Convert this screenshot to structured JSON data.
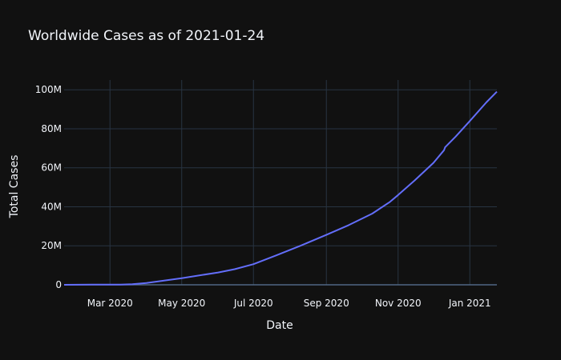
{
  "chart_data": {
    "type": "line",
    "title": "Worldwide Cases as of 2021-01-24",
    "xlabel": "Date",
    "ylabel": "Total Cases",
    "x_range": [
      "2020-01-22",
      "2021-01-24"
    ],
    "ylim": [
      0,
      105000000
    ],
    "x_ticks": [
      {
        "date": "2020-03-01",
        "label": "Mar 2020"
      },
      {
        "date": "2020-05-01",
        "label": "May 2020"
      },
      {
        "date": "2020-07-01",
        "label": "Jul 2020"
      },
      {
        "date": "2020-09-01",
        "label": "Sep 2020"
      },
      {
        "date": "2020-11-01",
        "label": "Nov 2020"
      },
      {
        "date": "2021-01-01",
        "label": "Jan 2021"
      }
    ],
    "y_ticks": [
      {
        "value": 0,
        "label": "0"
      },
      {
        "value": 20000000,
        "label": "20M"
      },
      {
        "value": 40000000,
        "label": "40M"
      },
      {
        "value": 60000000,
        "label": "60M"
      },
      {
        "value": 80000000,
        "label": "80M"
      },
      {
        "value": 100000000,
        "label": "100M"
      }
    ],
    "grid": true,
    "series": [
      {
        "color": "#636efa",
        "points": [
          [
            "2020-01-22",
            555
          ],
          [
            "2020-02-15",
            69000
          ],
          [
            "2020-03-10",
            120000
          ],
          [
            "2020-03-20",
            300000
          ],
          [
            "2020-04-01",
            950000
          ],
          [
            "2020-05-01",
            3400000
          ],
          [
            "2020-06-01",
            6300000
          ],
          [
            "2020-06-15",
            8000000
          ],
          [
            "2020-07-01",
            10600000
          ],
          [
            "2020-07-20",
            15000000
          ],
          [
            "2020-08-10",
            20000000
          ],
          [
            "2020-09-01",
            25600000
          ],
          [
            "2020-09-20",
            30600000
          ],
          [
            "2020-10-10",
            36500000
          ],
          [
            "2020-10-25",
            42500000
          ],
          [
            "2020-11-01",
            46000000
          ],
          [
            "2020-11-15",
            53500000
          ],
          [
            "2020-12-01",
            62500000
          ],
          [
            "2020-12-10",
            69000000
          ],
          [
            "2020-12-11",
            70500000
          ],
          [
            "2020-12-20",
            76000000
          ],
          [
            "2021-01-01",
            84000000
          ],
          [
            "2021-01-15",
            93500000
          ],
          [
            "2021-01-24",
            99000000
          ]
        ]
      }
    ]
  }
}
